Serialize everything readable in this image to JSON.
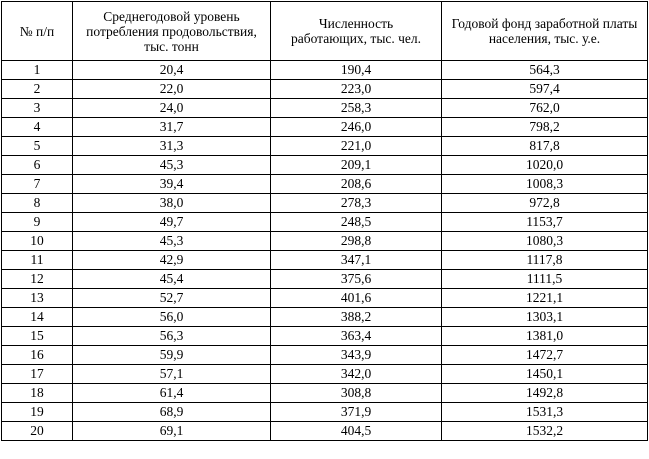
{
  "table": {
    "headers": [
      "№ п/п",
      "Среднегодовой уровень потребления продовольствия, тыс. тонн",
      "Численность работающих, тыс. чел.",
      "Годовой фонд заработной платы населения, тыс. у.е."
    ],
    "rows": [
      [
        "1",
        "20,4",
        "190,4",
        "564,3"
      ],
      [
        "2",
        "22,0",
        "223,0",
        "597,4"
      ],
      [
        "3",
        "24,0",
        "258,3",
        "762,0"
      ],
      [
        "4",
        "31,7",
        "246,0",
        "798,2"
      ],
      [
        "5",
        "31,3",
        "221,0",
        "817,8"
      ],
      [
        "6",
        "45,3",
        "209,1",
        "1020,0"
      ],
      [
        "7",
        "39,4",
        "208,6",
        "1008,3"
      ],
      [
        "8",
        "38,0",
        "278,3",
        "972,8"
      ],
      [
        "9",
        "49,7",
        "248,5",
        "1153,7"
      ],
      [
        "10",
        "45,3",
        "298,8",
        "1080,3"
      ],
      [
        "11",
        "42,9",
        "347,1",
        "1117,8"
      ],
      [
        "12",
        "45,4",
        "375,6",
        "1111,5"
      ],
      [
        "13",
        "52,7",
        "401,6",
        "1221,1"
      ],
      [
        "14",
        "56,0",
        "388,2",
        "1303,1"
      ],
      [
        "15",
        "56,3",
        "363,4",
        "1381,0"
      ],
      [
        "16",
        "59,9",
        "343,9",
        "1472,7"
      ],
      [
        "17",
        "57,1",
        "342,0",
        "1450,1"
      ],
      [
        "18",
        "61,4",
        "308,8",
        "1492,8"
      ],
      [
        "19",
        "68,9",
        "371,9",
        "1531,3"
      ],
      [
        "20",
        "69,1",
        "404,5",
        "1532,2"
      ]
    ]
  }
}
